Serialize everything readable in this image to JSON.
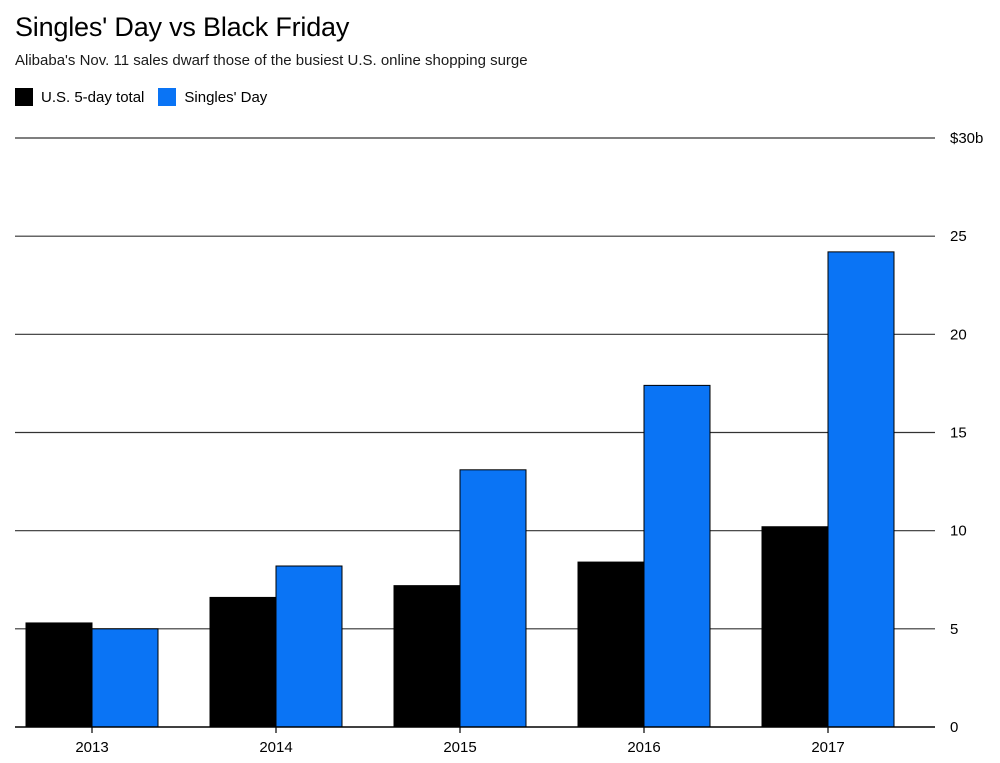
{
  "chart_data": {
    "type": "bar",
    "title": "Singles' Day vs Black Friday",
    "subtitle": "Alibaba's Nov. 11 sales dwarf those of the busiest U.S. online shopping surge",
    "categories": [
      "2013",
      "2014",
      "2015",
      "2016",
      "2017"
    ],
    "series": [
      {
        "name": "U.S. 5-day total",
        "color": "#000000",
        "values": [
          5.3,
          6.6,
          7.2,
          8.4,
          10.2
        ]
      },
      {
        "name": "Singles' Day",
        "color": "#0a74f5",
        "values": [
          5.0,
          8.2,
          13.1,
          17.4,
          24.2
        ]
      }
    ],
    "ylim": [
      0,
      30
    ],
    "yticks": [
      0,
      5,
      10,
      15,
      20,
      25,
      30
    ],
    "ytick_labels": [
      "0",
      "5",
      "10",
      "15",
      "20",
      "25",
      "$30b"
    ],
    "xlabel": "",
    "ylabel": "",
    "legend_position": "top-left",
    "grid": true
  }
}
